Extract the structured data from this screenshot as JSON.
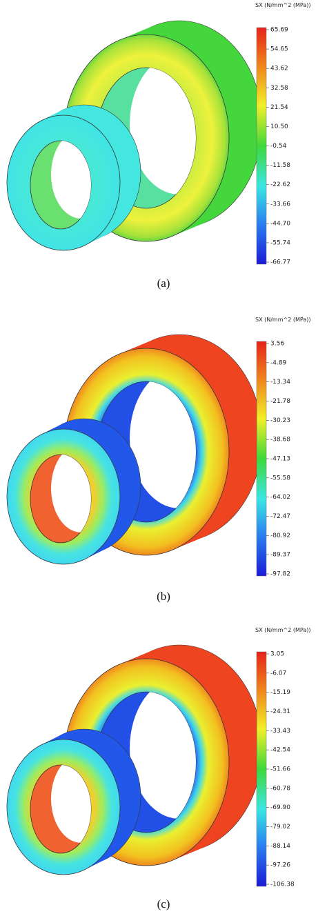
{
  "panels": [
    {
      "legend_title": "SX (N/mm^2 (MPa))",
      "legend_labels": [
        "65.69",
        "54.65",
        "43.62",
        "32.58",
        "21.54",
        "10.50",
        "-0.54",
        "-11.58",
        "-22.62",
        "-33.66",
        "-44.70",
        "-55.74",
        "-66.77"
      ],
      "caption": "(a)"
    },
    {
      "legend_title": "SX (N/mm^2 (MPa))",
      "legend_labels": [
        "3.56",
        "-4.89",
        "-13.34",
        "-21.78",
        "-30.23",
        "-38.68",
        "-47.13",
        "-55.58",
        "-64.02",
        "-72.47",
        "-80.92",
        "-89.37",
        "-97.82"
      ],
      "caption": "(b)"
    },
    {
      "legend_title": "SX (N/mm^2 (MPa))",
      "legend_labels": [
        "3.05",
        "-6.07",
        "-15.19",
        "-24.31",
        "-33.43",
        "-42.54",
        "-51.66",
        "-60.78",
        "-69.90",
        "-79.02",
        "-88.14",
        "-97.26",
        "-106.38"
      ],
      "caption": "(c)"
    }
  ]
}
